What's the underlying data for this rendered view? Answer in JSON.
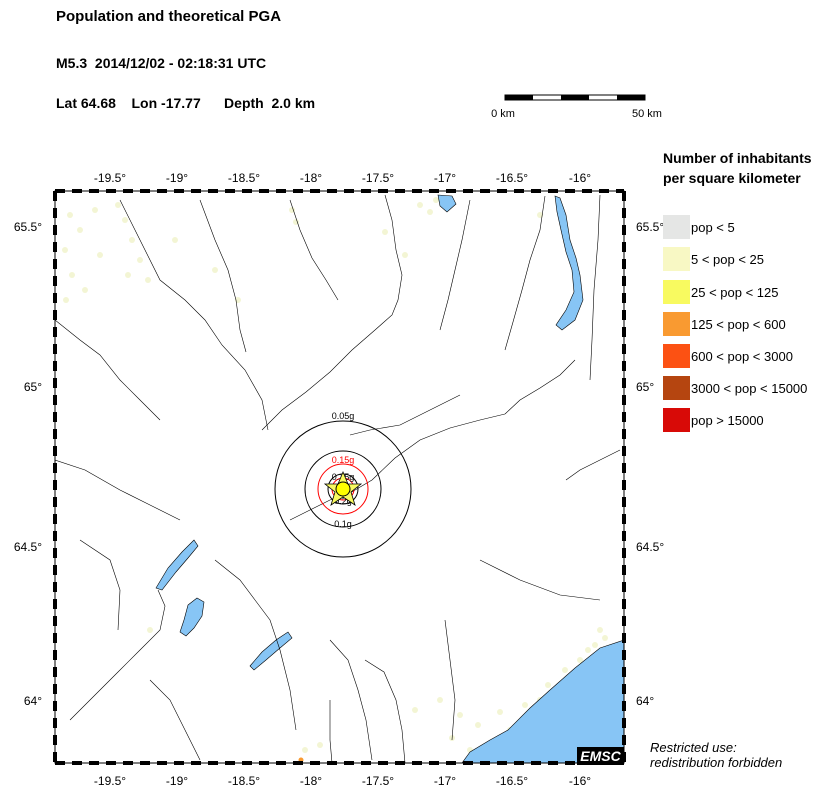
{
  "header": {
    "title": "Population and theoretical PGA",
    "event": "M5.3  2014/12/02 - 02:18:31 UTC",
    "location": "Lat 64.68    Lon -17.77      Depth  2.0 km"
  },
  "scale_bar": {
    "start_label": "0 km",
    "end_label": "50 km"
  },
  "map": {
    "lon_ticks": [
      "-19.5°",
      "-19°",
      "-18.5°",
      "-18°",
      "-17.5°",
      "-17°",
      "-16.5°",
      "-16°"
    ],
    "lat_ticks": [
      "65.5°",
      "65°",
      "64.5°",
      "64°"
    ],
    "pga_labels": [
      "0.05g",
      "0.15g",
      "0.25g",
      "0.2g",
      "0.1g"
    ],
    "epicenter_icon": "yellow-circle-icon",
    "star_icon": "star-icon",
    "colors": {
      "water": "#87c5f5",
      "low_pop": "#f3f5d4",
      "pga_red": "#ff0000"
    }
  },
  "legend": {
    "title_line1": "Number of inhabitants",
    "title_line2": "per square kilometer",
    "items": [
      {
        "label": "pop < 5",
        "color": "#e5e6e5"
      },
      {
        "label": "5 < pop < 25",
        "color": "#f8f8c4"
      },
      {
        "label": "25 < pop < 125",
        "color": "#f8fa60"
      },
      {
        "label": "125 < pop < 600",
        "color": "#f99a31"
      },
      {
        "label": "600 < pop < 3000",
        "color": "#fc5113"
      },
      {
        "label": "3000 < pop < 15000",
        "color": "#b54510"
      },
      {
        "label": "pop > 15000",
        "color": "#d80a07"
      }
    ]
  },
  "footer": {
    "logo": "EMSC",
    "note_line1": "Restricted use:",
    "note_line2": "redistribution forbidden"
  }
}
